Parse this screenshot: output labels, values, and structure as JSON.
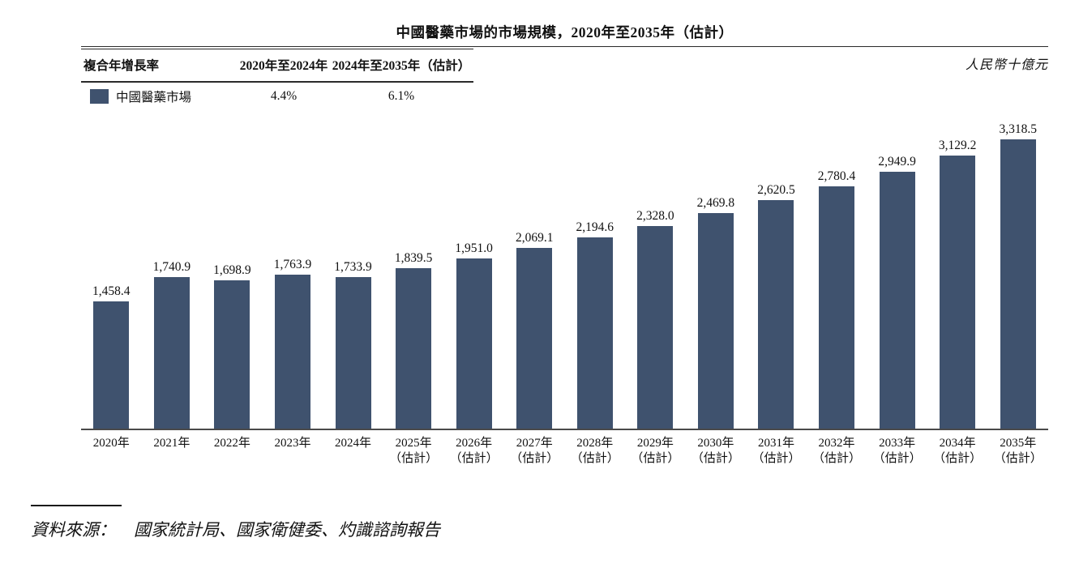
{
  "title": "中國醫藥市場的市場規模，2020年至2035年（估計）",
  "unit_label": "人民幣十億元",
  "cagr_table": {
    "header": [
      "複合年增長率",
      "2020年至2024年",
      "2024年至2035年（估計）"
    ],
    "rows": [
      {
        "label": "中國醫藥市場",
        "swatch_color": "#3F526E",
        "values": [
          "4.4%",
          "6.1%"
        ]
      }
    ]
  },
  "chart_data": {
    "type": "bar",
    "title": "中國醫藥市場的市場規模，2020年至2035年（估計）",
    "series_name": "中國醫藥市場",
    "unit": "人民幣十億元",
    "categories": [
      [
        "2020年"
      ],
      [
        "2021年"
      ],
      [
        "2022年"
      ],
      [
        "2023年"
      ],
      [
        "2024年"
      ],
      [
        "2025年",
        "（估計）"
      ],
      [
        "2026年",
        "（估計）"
      ],
      [
        "2027年",
        "（估計）"
      ],
      [
        "2028年",
        "（估計）"
      ],
      [
        "2029年",
        "（估計）"
      ],
      [
        "2030年",
        "（估計）"
      ],
      [
        "2031年",
        "（估計）"
      ],
      [
        "2032年",
        "（估計）"
      ],
      [
        "2033年",
        "（估計）"
      ],
      [
        "2034年",
        "（估計）"
      ],
      [
        "2035年",
        "（估計）"
      ]
    ],
    "values": [
      1458.4,
      1740.9,
      1698.9,
      1763.9,
      1733.9,
      1839.5,
      1951.0,
      2069.1,
      2194.6,
      2328.0,
      2469.8,
      2620.5,
      2780.4,
      2949.9,
      3129.2,
      3318.5
    ],
    "value_labels": [
      "1,458.4",
      "1,740.9",
      "1,698.9",
      "1,763.9",
      "1,733.9",
      "1,839.5",
      "1,951.0",
      "2,069.1",
      "2,194.6",
      "2,328.0",
      "2,469.8",
      "2,620.5",
      "2,780.4",
      "2,949.9",
      "3,129.2",
      "3,318.5"
    ],
    "cagr_2020_2024": "4.4%",
    "cagr_2024_2035_estimate": "6.1%",
    "bar_color": "#3F526E",
    "ylim": [
      0,
      3500
    ],
    "grid": false,
    "y_axis_visible": false,
    "legend_position": "top-left-table"
  },
  "source": {
    "label": "資料來源：",
    "text": "國家統計局、國家衛健委、灼識諮詢報告"
  }
}
